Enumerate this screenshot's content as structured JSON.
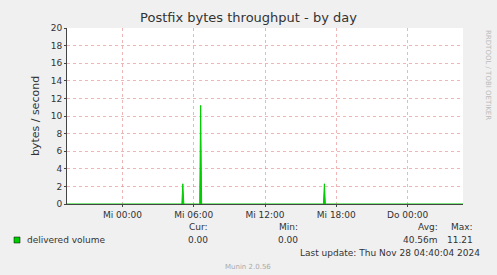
{
  "chart_data": {
    "type": "line",
    "title": "Postfix bytes throughput - by day",
    "y_label": "bytes / second",
    "x": [
      -4.667,
      5.0,
      5.083,
      5.167,
      6.5,
      6.583,
      6.667,
      16.917,
      17.0,
      17.083,
      28.667
    ],
    "series": [
      {
        "name": "delivered volume",
        "color": "#00cc00",
        "values": [
          0,
          0,
          2.3,
          0,
          0,
          11.21,
          0,
          0,
          2.3,
          0,
          0
        ]
      }
    ],
    "xlim": [
      -4.667,
      28.667
    ],
    "xticks": [
      {
        "value": 0,
        "label": "Mi 00:00"
      },
      {
        "value": 6,
        "label": "Mi 06:00"
      },
      {
        "value": 12,
        "label": "Mi 12:00"
      },
      {
        "value": 18,
        "label": "Mi 18:00"
      },
      {
        "value": 24,
        "label": "Do 00:00"
      }
    ],
    "ylim": [
      0,
      20
    ],
    "yticks": [
      0,
      2,
      4,
      6,
      8,
      10,
      12,
      14,
      16,
      18,
      20
    ],
    "grid": true,
    "stats": {
      "headers": [
        "Cur:",
        "Min:",
        "Avg:",
        "Max:"
      ],
      "values": [
        "0.00",
        "0.00",
        "40.56m",
        "11.21"
      ]
    },
    "annotations": [
      "Last update: Thu Nov 28 04:40:04 2024",
      "Munin 2.0.56",
      "RRDTOOL / TOBI OETIKER"
    ]
  }
}
